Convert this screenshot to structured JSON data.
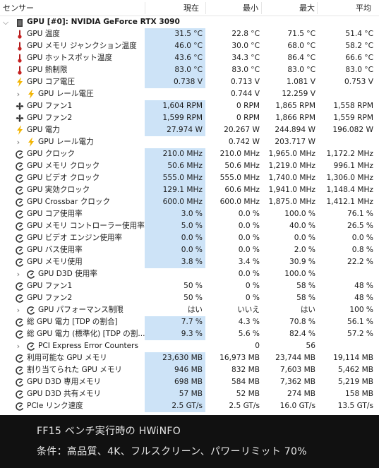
{
  "header": {
    "sensor": "センサー",
    "current": "現在",
    "min": "最小",
    "max": "最大",
    "avg": "平均"
  },
  "group": {
    "label": "GPU [#0]: NVIDIA GeForce RTX 3090"
  },
  "rows": [
    {
      "icon": "thermo",
      "label": "GPU 温度",
      "cur": "31.5 °C",
      "min": "22.8 °C",
      "max": "71.5 °C",
      "avg": "51.4 °C",
      "hl": true
    },
    {
      "icon": "thermo",
      "label": "GPU メモリ ジャンクション温度",
      "cur": "46.0 °C",
      "min": "30.0 °C",
      "max": "68.0 °C",
      "avg": "58.2 °C",
      "hl": true
    },
    {
      "icon": "thermo",
      "label": "GPU ホットスポット温度",
      "cur": "43.6 °C",
      "min": "34.3 °C",
      "max": "86.4 °C",
      "avg": "66.6 °C",
      "hl": true
    },
    {
      "icon": "thermo",
      "label": "GPU 熱制限",
      "cur": "83.0 °C",
      "min": "83.0 °C",
      "max": "83.0 °C",
      "avg": "83.0 °C",
      "hl": true
    },
    {
      "icon": "bolt",
      "label": "GPU コア電圧",
      "cur": "0.738 V",
      "min": "0.713 V",
      "max": "1.081 V",
      "avg": "0.753 V",
      "hl": true
    },
    {
      "icon": "bolt",
      "expand": true,
      "indent": true,
      "label": "GPU レール電圧",
      "cur": "",
      "min": "0.744 V",
      "max": "12.259 V",
      "avg": "",
      "hl": false
    },
    {
      "icon": "fan",
      "label": "GPU ファン1",
      "cur": "1,604 RPM",
      "min": "0 RPM",
      "max": "1,865 RPM",
      "avg": "1,558 RPM",
      "hl": true
    },
    {
      "icon": "fan",
      "label": "GPU ファン2",
      "cur": "1,599 RPM",
      "min": "0 RPM",
      "max": "1,866 RPM",
      "avg": "1,559 RPM",
      "hl": true
    },
    {
      "icon": "bolt",
      "label": "GPU 電力",
      "cur": "27.974 W",
      "min": "20.267 W",
      "max": "244.894 W",
      "avg": "196.082 W",
      "hl": true
    },
    {
      "icon": "bolt",
      "expand": true,
      "indent": true,
      "label": "GPU レール電力",
      "cur": "",
      "min": "0.742 W",
      "max": "203.717 W",
      "avg": "",
      "hl": false
    },
    {
      "icon": "clock",
      "label": "GPU クロック",
      "cur": "210.0 MHz",
      "min": "210.0 MHz",
      "max": "1,965.0 MHz",
      "avg": "1,172.2 MHz",
      "hl": true
    },
    {
      "icon": "clock",
      "label": "GPU メモリ クロック",
      "cur": "50.6 MHz",
      "min": "50.6 MHz",
      "max": "1,219.0 MHz",
      "avg": "996.1 MHz",
      "hl": true
    },
    {
      "icon": "clock",
      "label": "GPU ビデオ クロック",
      "cur": "555.0 MHz",
      "min": "555.0 MHz",
      "max": "1,740.0 MHz",
      "avg": "1,306.0 MHz",
      "hl": true
    },
    {
      "icon": "clock",
      "label": "GPU 実効クロック",
      "cur": "129.1 MHz",
      "min": "60.6 MHz",
      "max": "1,941.0 MHz",
      "avg": "1,148.4 MHz",
      "hl": true
    },
    {
      "icon": "clock",
      "label": "GPU Crossbar クロック",
      "cur": "600.0 MHz",
      "min": "600.0 MHz",
      "max": "1,875.0 MHz",
      "avg": "1,412.1 MHz",
      "hl": true
    },
    {
      "icon": "clock",
      "label": "GPU コア使用率",
      "cur": "3.0 %",
      "min": "0.0 %",
      "max": "100.0 %",
      "avg": "76.1 %",
      "hl": true
    },
    {
      "icon": "clock",
      "label": "GPU メモリ コントローラー使用率",
      "cur": "5.0 %",
      "min": "0.0 %",
      "max": "40.0 %",
      "avg": "26.5 %",
      "hl": true
    },
    {
      "icon": "clock",
      "label": "GPU ビデオ エンジン使用率",
      "cur": "0.0 %",
      "min": "0.0 %",
      "max": "0.0 %",
      "avg": "0.0 %",
      "hl": true
    },
    {
      "icon": "clock",
      "label": "GPU バス使用率",
      "cur": "0.0 %",
      "min": "0.0 %",
      "max": "2.0 %",
      "avg": "0.8 %",
      "hl": true
    },
    {
      "icon": "clock",
      "label": "GPU メモリ使用",
      "cur": "3.8 %",
      "min": "3.4 %",
      "max": "30.9 %",
      "avg": "22.2 %",
      "hl": true
    },
    {
      "icon": "clock",
      "expand": true,
      "indent": true,
      "label": "GPU D3D 使用率",
      "cur": "",
      "min": "0.0 %",
      "max": "100.0 %",
      "avg": "",
      "hl": false
    },
    {
      "icon": "clock",
      "label": "GPU ファン1",
      "cur": "50 %",
      "min": "0 %",
      "max": "58 %",
      "avg": "48 %",
      "hl": false
    },
    {
      "icon": "clock",
      "label": "GPU ファン2",
      "cur": "50 %",
      "min": "0 %",
      "max": "58 %",
      "avg": "48 %",
      "hl": false
    },
    {
      "icon": "clock",
      "expand": true,
      "indent": true,
      "label": "GPU パフォーマンス制限",
      "cur": "はい",
      "min": "いいえ",
      "max": "はい",
      "avg": "100 %",
      "hl": false
    },
    {
      "icon": "clock",
      "label": "総 GPU 電力 [TDP の割合]",
      "cur": "7.7 %",
      "min": "4.3 %",
      "max": "70.8 %",
      "avg": "56.1 %",
      "hl": true
    },
    {
      "icon": "clock",
      "label": "総 GPU 電力 (標準化) [TDP の割...",
      "cur": "9.3 %",
      "min": "5.6 %",
      "max": "82.4 %",
      "avg": "57.2 %",
      "hl": true
    },
    {
      "icon": "clock",
      "expand": true,
      "indent": true,
      "label": "PCI Express Error Counters",
      "cur": "",
      "min": "0",
      "max": "56",
      "avg": "",
      "hl": false
    },
    {
      "icon": "clock",
      "label": "利用可能な GPU メモリ",
      "cur": "23,630 MB",
      "min": "16,973 MB",
      "max": "23,744 MB",
      "avg": "19,114 MB",
      "hl": true
    },
    {
      "icon": "clock",
      "label": "割り当てられた GPU メモリ",
      "cur": "946 MB",
      "min": "832 MB",
      "max": "7,603 MB",
      "avg": "5,462 MB",
      "hl": true
    },
    {
      "icon": "clock",
      "label": "GPU D3D 専用メモリ",
      "cur": "698 MB",
      "min": "584 MB",
      "max": "7,362 MB",
      "avg": "5,219 MB",
      "hl": true
    },
    {
      "icon": "clock",
      "label": "GPU D3D 共有メモリ",
      "cur": "57 MB",
      "min": "52 MB",
      "max": "274 MB",
      "avg": "158 MB",
      "hl": true
    },
    {
      "icon": "clock",
      "label": "PCIe リンク速度",
      "cur": "2.5 GT/s",
      "min": "2.5 GT/s",
      "max": "16.0 GT/s",
      "avg": "13.5 GT/s",
      "hl": true
    }
  ],
  "caption": {
    "line1": "FF15 ベンチ実行時の HWiNFO",
    "line2": "条件：高品質、4K、フルスクリーン、パワーリミット 70%"
  }
}
